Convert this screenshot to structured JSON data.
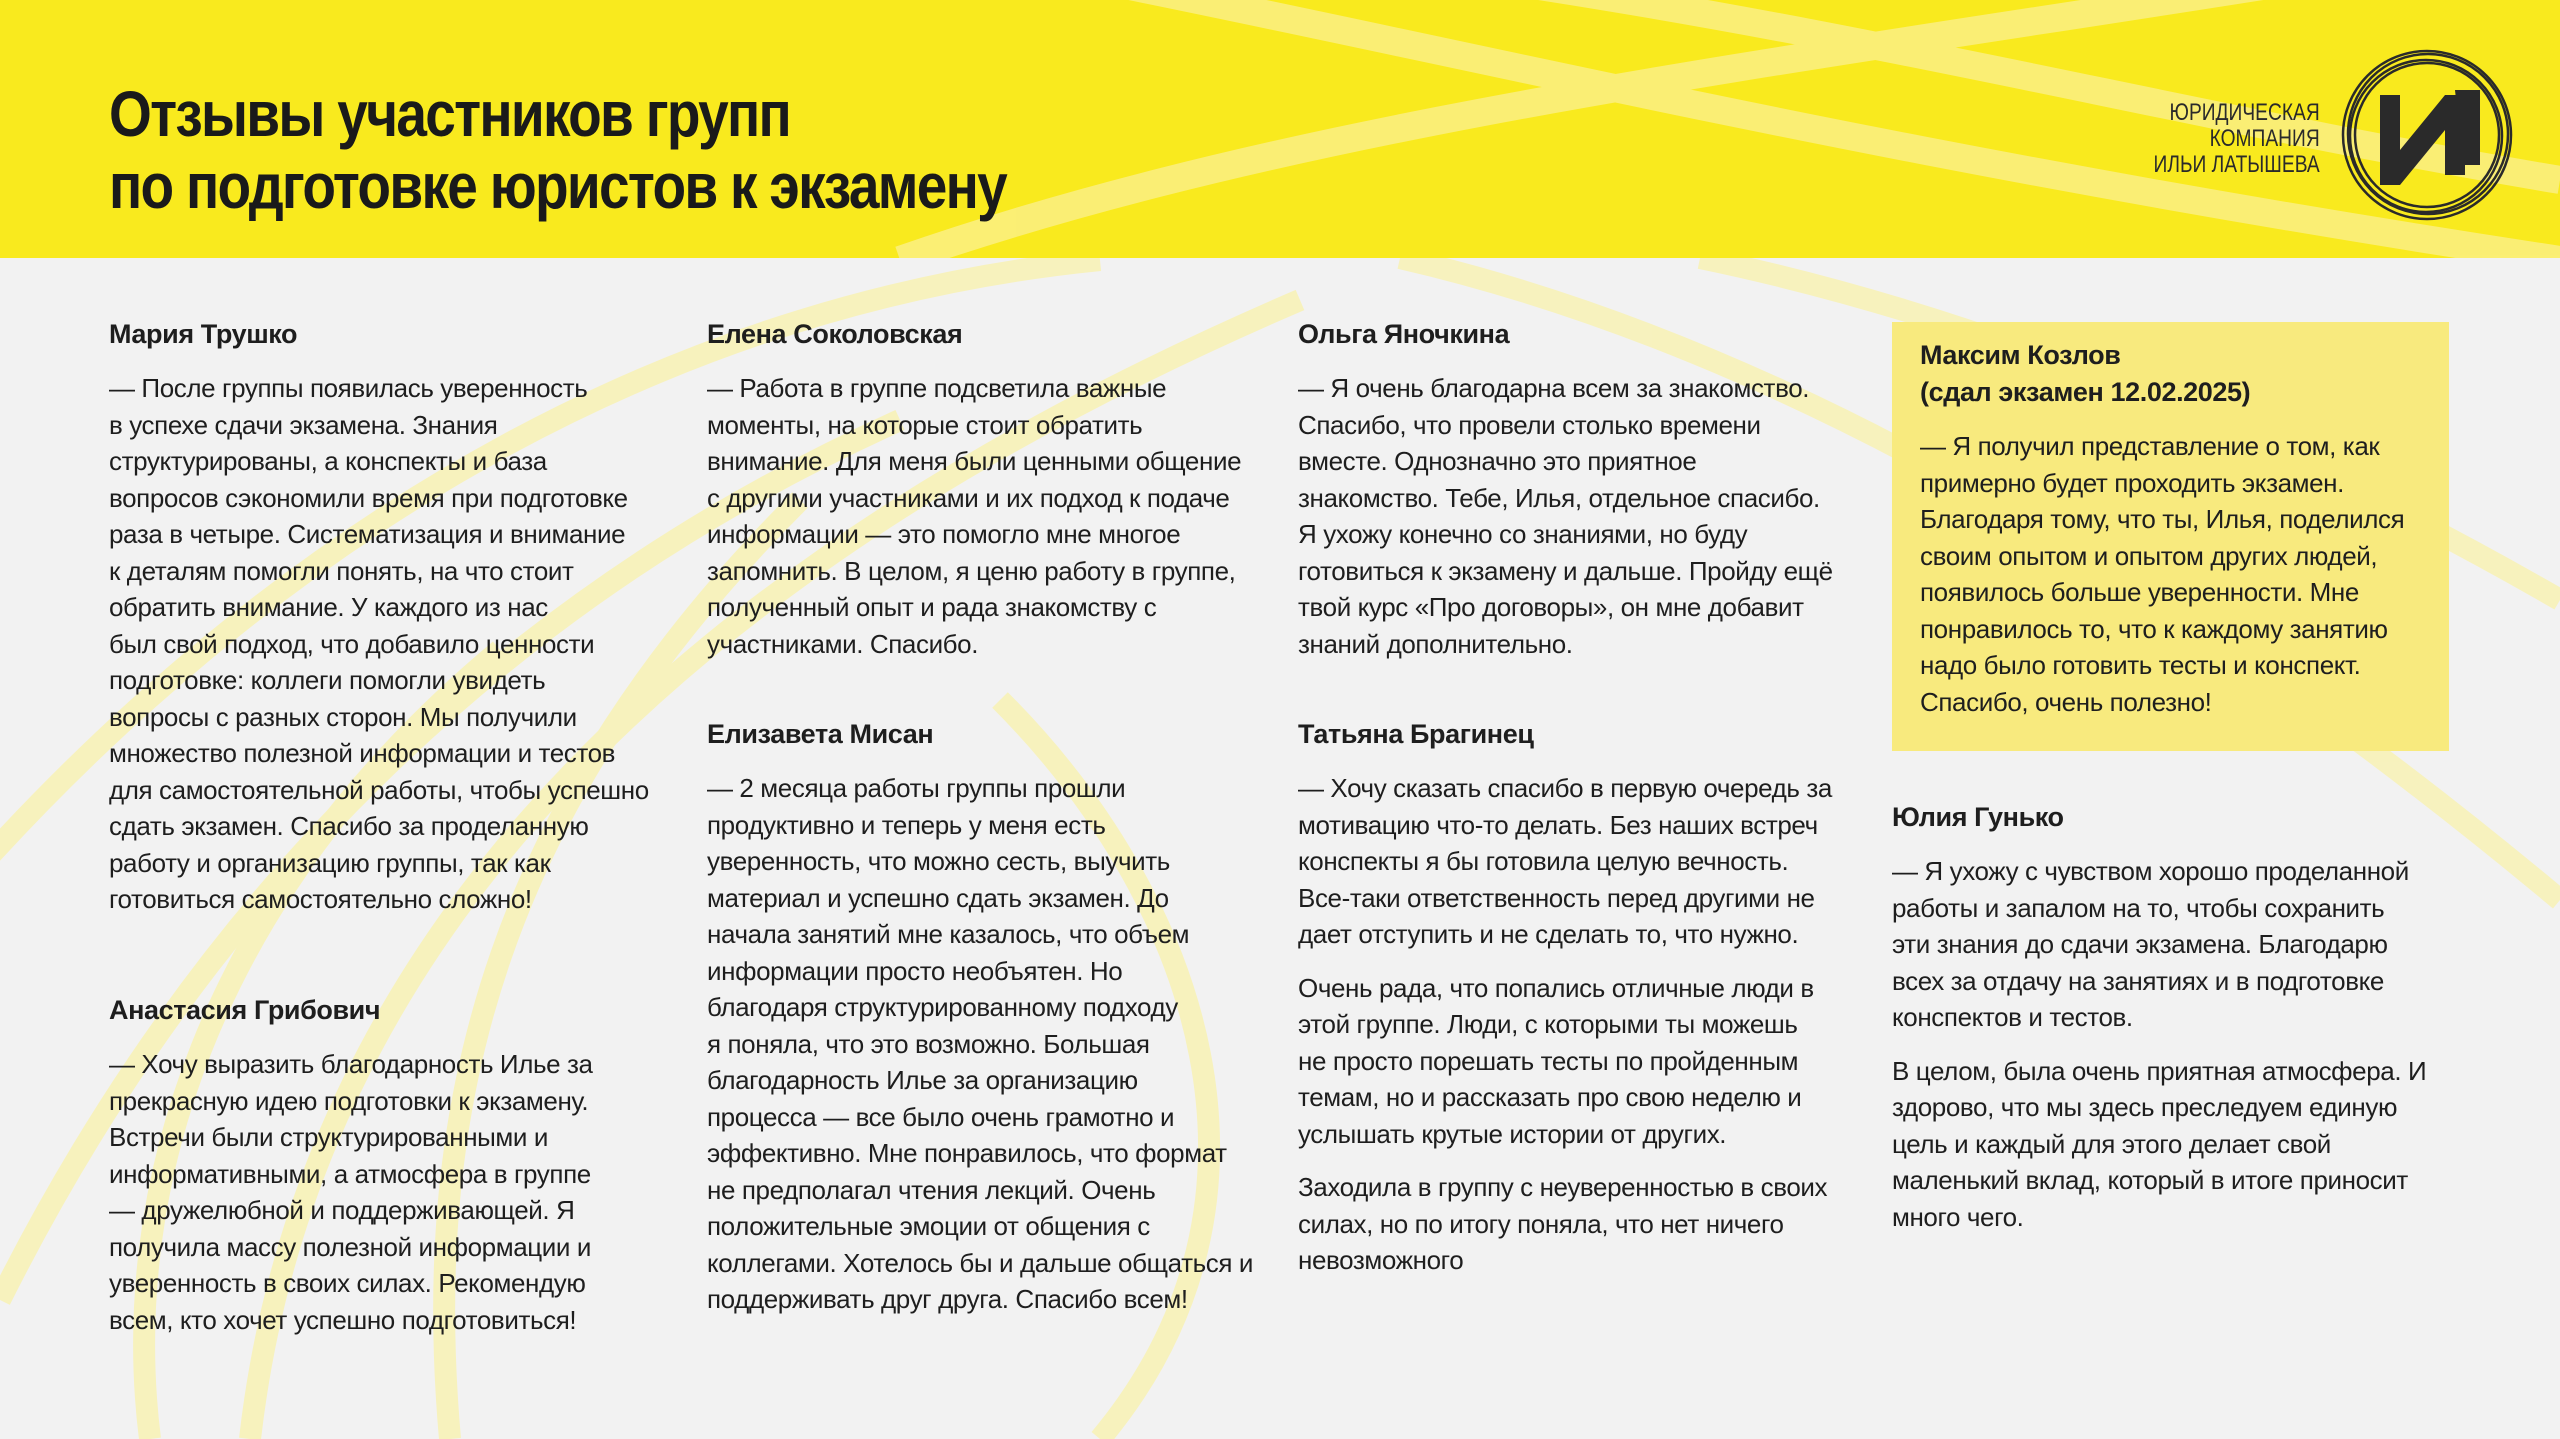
{
  "header": {
    "title_lines": [
      "Отзывы участников групп",
      "по подготовке юристов к экзамену"
    ],
    "logo": {
      "text_lines": [
        "ЮРИДИЧЕСКАЯ",
        "КОМПАНИЯ",
        "ИЛЬИ ЛАТЫШЕВА"
      ],
      "monogram": "ИЛ"
    }
  },
  "colors": {
    "accent": "#f9ea1e",
    "highlight": "#f8ea7e",
    "text": "#1e1e1e"
  },
  "reviews": [
    {
      "name": "Мария Трушко",
      "paras": [
        [
          "— После группы появилась уверенность",
          "в успехе сдачи экзамена. Знания",
          "структурированы, а конспекты и база",
          "вопросов сэкономили время при подготовке",
          "раза в четыре. Систематизация и внимание",
          "к деталям помогли понять, на что стоит",
          "обратить внимание. У каждого из нас",
          "был свой подход, что добавило ценности",
          "подготовке: коллеги помогли увидеть",
          "вопросы с разных сторон. Мы получили",
          "множество полезной информации и тестов",
          "для самостоятельной работы, чтобы успешно",
          "сдать экзамен. Спасибо за проделанную",
          "работу и организацию группы, так как",
          "готовиться самостоятельно сложно!"
        ]
      ]
    },
    {
      "name": "Анастасия Грибович",
      "paras": [
        [
          "— Хочу выразить благодарность Илье за",
          "прекрасную идею подготовки к экзамену.",
          "Встречи были структурированными и",
          "информативными, а атмосфера в группе",
          "— дружелюбной и поддерживающей. Я",
          "получила массу полезной информации и",
          "уверенность в своих силах. Рекомендую",
          "всем, кто хочет успешно подготовиться!"
        ]
      ]
    },
    {
      "name": "Елена Соколовская",
      "paras": [
        [
          "— Работа в группе подсветила важные",
          "моменты, на которые стоит обратить",
          "внимание. Для меня были ценными общение",
          "с другими участниками и их подход к подаче",
          "информации — это помогло мне многое",
          "запомнить. В целом, я ценю работу в группе,",
          "полученный опыт и рада знакомству с",
          "участниками. Спасибо."
        ]
      ]
    },
    {
      "name": "Елизавета Мисан",
      "paras": [
        [
          "— 2 месяца работы группы прошли",
          "продуктивно и теперь у меня есть",
          "уверенность, что можно сесть, выучить",
          "материал и успешно сдать экзамен. До",
          "начала занятий мне казалось, что объем",
          "информации просто необъятен. Но",
          "благодаря структурированному подходу",
          "я поняла, что это возможно. Большая",
          "благодарность Илье за организацию",
          "процесса — все было очень грамотно и",
          "эффективно. Мне понравилось, что формат",
          "не предполагал чтения лекций. Очень",
          "положительные эмоции от общения с",
          "коллегами. Хотелось бы и дальше общаться и",
          "поддерживать друг друга. Спасибо всем!"
        ]
      ]
    },
    {
      "name": "Ольга Яночкина",
      "paras": [
        [
          "— Я очень благодарна всем за знакомство.",
          "Спасибо, что провели столько времени",
          "вместе. Однозначно это приятное",
          "знакомство. Тебе, Илья, отдельное спасибо.",
          "Я ухожу конечно со знаниями, но буду",
          "готовиться к экзамену и дальше. Пройду ещё",
          "твой курс «Про договоры», он мне добавит",
          "знаний дополнительно."
        ]
      ]
    },
    {
      "name": "Татьяна Брагинец",
      "paras": [
        [
          "— Хочу сказать спасибо в первую очередь за",
          "мотивацию что-то делать. Без наших встреч",
          "конспекты я бы готовила целую вечность.",
          "Все-таки ответственность перед другими не",
          "дает отступить и не сделать то, что нужно."
        ],
        [
          "Очень рада, что попались отличные люди в",
          "этой группе. Люди, с которыми ты можешь",
          "не просто порешать тесты по пройденным",
          "темам, но и рассказать про свою неделю и",
          "услышать крутые истории от других."
        ],
        [
          "Заходила в группу с неуверенностью в своих",
          "силах, но по итогу поняла, что нет ничего",
          "невозможного"
        ]
      ]
    },
    {
      "name": "Максим Козлов",
      "note": "(сдал экзамен 12.02.2025)",
      "paras": [
        [
          "— Я получил представление о том, как",
          "примерно будет проходить экзамен.",
          "Благодаря тому, что ты, Илья, поделился",
          "своим опытом и опытом других людей,",
          "появилось больше уверенности. Мне",
          "понравилось то, что к каждому занятию",
          "надо было готовить тесты и конспект.",
          "Спасибо, очень полезно!"
        ]
      ]
    },
    {
      "name": "Юлия Гунько",
      "paras": [
        [
          "— Я ухожу с чувством хорошо проделанной",
          "работы и запалом на то, чтобы сохранить",
          "эти знания до сдачи экзамена. Благодарю",
          "всех за отдачу на занятиях и в подготовке",
          "конспектов и тестов."
        ],
        [
          "В целом, была очень приятная атмосфера. И",
          "здорово, что мы здесь преследуем единую",
          "цель и каждый для этого делает свой",
          "маленький вклад, который в итоге приносит",
          "много чего."
        ]
      ]
    }
  ]
}
